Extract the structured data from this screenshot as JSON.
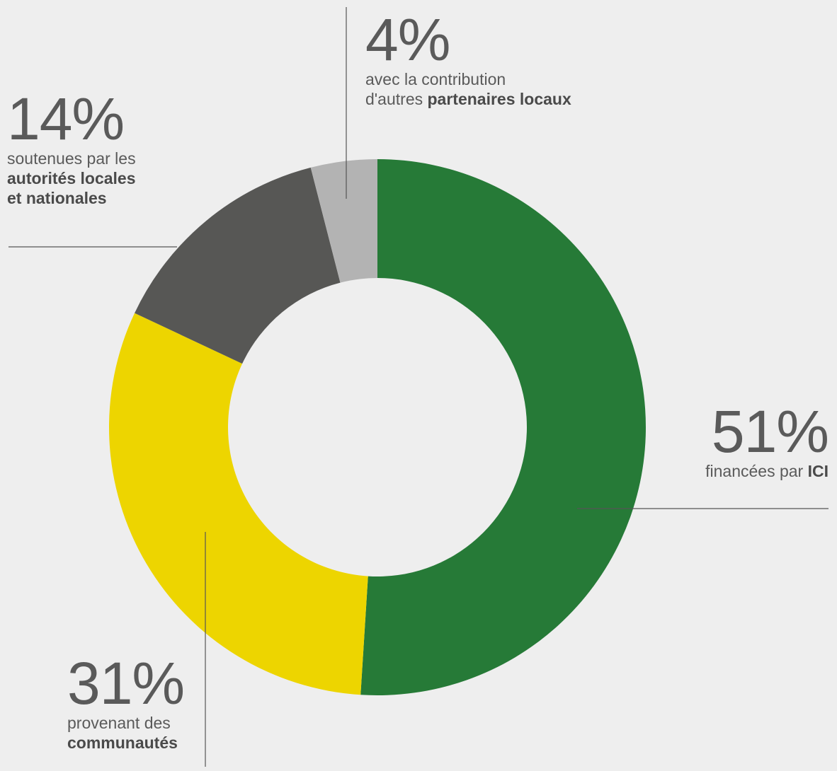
{
  "chart_data": {
    "type": "pie",
    "style": "donut",
    "slices": [
      {
        "key": "ici",
        "value": 51,
        "label": "51%",
        "desc_plain": "financées par ",
        "desc_bold": "ICI",
        "color": "#267a37"
      },
      {
        "key": "communities",
        "value": 31,
        "label": "31%",
        "desc_plain": "provenant des",
        "desc_bold": "communautés",
        "color": "#edd500"
      },
      {
        "key": "authorities",
        "value": 14,
        "label": "14%",
        "desc_plain": "soutenues par les",
        "desc_bold_1": "autorités locales",
        "desc_bold_2": "et nationales",
        "color": "#575755"
      },
      {
        "key": "partners",
        "value": 4,
        "label": "4%",
        "desc_plain_1": "avec la contribution",
        "desc_plain_2": "d'autres ",
        "desc_bold": "partenaires locaux",
        "color": "#b3b3b3"
      }
    ],
    "direction": "clockwise",
    "start": "top"
  },
  "colors": {
    "background": "#eeeeee",
    "text": "#5a5a5a",
    "leader_line": "#555555"
  }
}
